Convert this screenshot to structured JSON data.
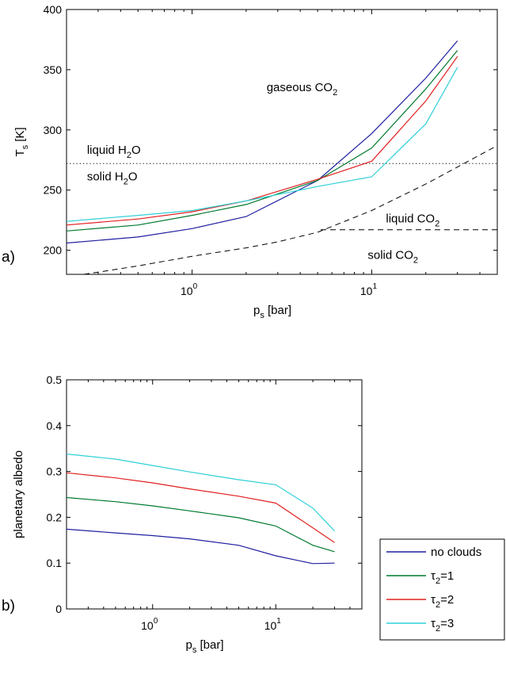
{
  "chart_data": [
    {
      "type": "line",
      "panel_label": "a)",
      "xlabel": {
        "main": "p",
        "sub": "s",
        "rest": " [bar]"
      },
      "ylabel": {
        "main": "T",
        "sub": "s",
        "rest": " [K]"
      },
      "x_scale": "log",
      "xlim": [
        0.2,
        50
      ],
      "ylim": [
        180,
        400
      ],
      "y_ticks": [
        "200",
        "250",
        "300",
        "350",
        "400"
      ],
      "x_ticks": [
        {
          "base": "10",
          "exp": "0"
        },
        {
          "base": "10",
          "exp": "1"
        }
      ],
      "grid": false,
      "series": [
        {
          "color": "#1f1fa0",
          "x": [
            0.2,
            0.5,
            1,
            2,
            5,
            10,
            20,
            30
          ],
          "y": [
            206,
            211,
            218,
            228,
            258,
            297,
            343,
            374
          ]
        },
        {
          "color": "#007a2e",
          "x": [
            0.2,
            0.5,
            1,
            2,
            5,
            10,
            20,
            30
          ],
          "y": [
            216,
            221,
            229,
            238,
            258,
            285,
            334,
            366
          ]
        },
        {
          "color": "#e02020",
          "x": [
            0.2,
            0.5,
            1,
            2,
            5,
            10,
            20,
            30
          ],
          "y": [
            221,
            226,
            232,
            241,
            259,
            274,
            324,
            361
          ]
        },
        {
          "color": "#2fd0d8",
          "x": [
            0.2,
            0.5,
            1,
            2,
            5,
            10,
            20,
            30
          ],
          "y": [
            224,
            229,
            233,
            241,
            253,
            261,
            305,
            352
          ]
        }
      ],
      "reference_lines": [
        {
          "style": "dotted",
          "x": [
            0.2,
            50
          ],
          "y": [
            272,
            272
          ]
        },
        {
          "style": "dashed",
          "x": [
            0.25,
            0.5,
            1,
            2,
            3,
            5,
            10,
            20,
            50
          ],
          "y": [
            180,
            187,
            195,
            202,
            207,
            215,
            233,
            255,
            287
          ]
        },
        {
          "style": "dashed",
          "x": [
            5.2,
            50
          ],
          "y": [
            217,
            217
          ]
        }
      ],
      "annotations": [
        {
          "text": "gaseous CO",
          "sub": "2",
          "x": 2.6,
          "y": 332
        },
        {
          "text": "liquid H",
          "sub": "2",
          "tail": "O",
          "x": 0.26,
          "y": 280
        },
        {
          "text": "solid H",
          "sub": "2",
          "tail": "O",
          "x": 0.26,
          "y": 258
        },
        {
          "text": "liquid CO",
          "sub": "2",
          "x": 12,
          "y": 223
        },
        {
          "text": "solid CO",
          "sub": "2",
          "x": 9.5,
          "y": 193
        }
      ]
    },
    {
      "type": "line",
      "panel_label": "b)",
      "xlabel": {
        "main": "p",
        "sub": "s",
        "rest": " [bar]"
      },
      "ylabel": {
        "main": "planetary albedo",
        "sub": "",
        "rest": ""
      },
      "x_scale": "log",
      "xlim": [
        0.2,
        50
      ],
      "ylim": [
        0,
        0.5
      ],
      "y_ticks": [
        "0",
        "0.1",
        "0.2",
        "0.3",
        "0.4",
        "0.5"
      ],
      "x_ticks": [
        {
          "base": "10",
          "exp": "0"
        },
        {
          "base": "10",
          "exp": "1"
        }
      ],
      "grid": false,
      "series": [
        {
          "color": "#1f1fa0",
          "x": [
            0.2,
            0.5,
            1,
            2,
            5,
            10,
            20,
            30
          ],
          "y": [
            0.174,
            0.166,
            0.16,
            0.153,
            0.139,
            0.116,
            0.099,
            0.1
          ]
        },
        {
          "color": "#007a2e",
          "x": [
            0.2,
            0.5,
            1,
            2,
            5,
            10,
            20,
            30
          ],
          "y": [
            0.243,
            0.234,
            0.225,
            0.214,
            0.199,
            0.181,
            0.139,
            0.125
          ]
        },
        {
          "color": "#e02020",
          "x": [
            0.2,
            0.5,
            1,
            2,
            5,
            10,
            20,
            30
          ],
          "y": [
            0.297,
            0.286,
            0.275,
            0.262,
            0.246,
            0.231,
            0.177,
            0.145
          ]
        },
        {
          "color": "#2fd0d8",
          "x": [
            0.2,
            0.5,
            1,
            2,
            5,
            10,
            20,
            30
          ],
          "y": [
            0.338,
            0.327,
            0.313,
            0.299,
            0.282,
            0.271,
            0.22,
            0.17
          ]
        }
      ],
      "legend": {
        "placement": "outside-right",
        "entries": [
          {
            "color": "#1f1fa0",
            "text": "no clouds",
            "sub": "",
            "tail": ""
          },
          {
            "color": "#007a2e",
            "text": "τ",
            "sub": "2",
            "tail": "=1"
          },
          {
            "color": "#e02020",
            "text": "τ",
            "sub": "2",
            "tail": "=2"
          },
          {
            "color": "#2fd0d8",
            "text": "τ",
            "sub": "2",
            "tail": "=3"
          }
        ]
      }
    }
  ]
}
